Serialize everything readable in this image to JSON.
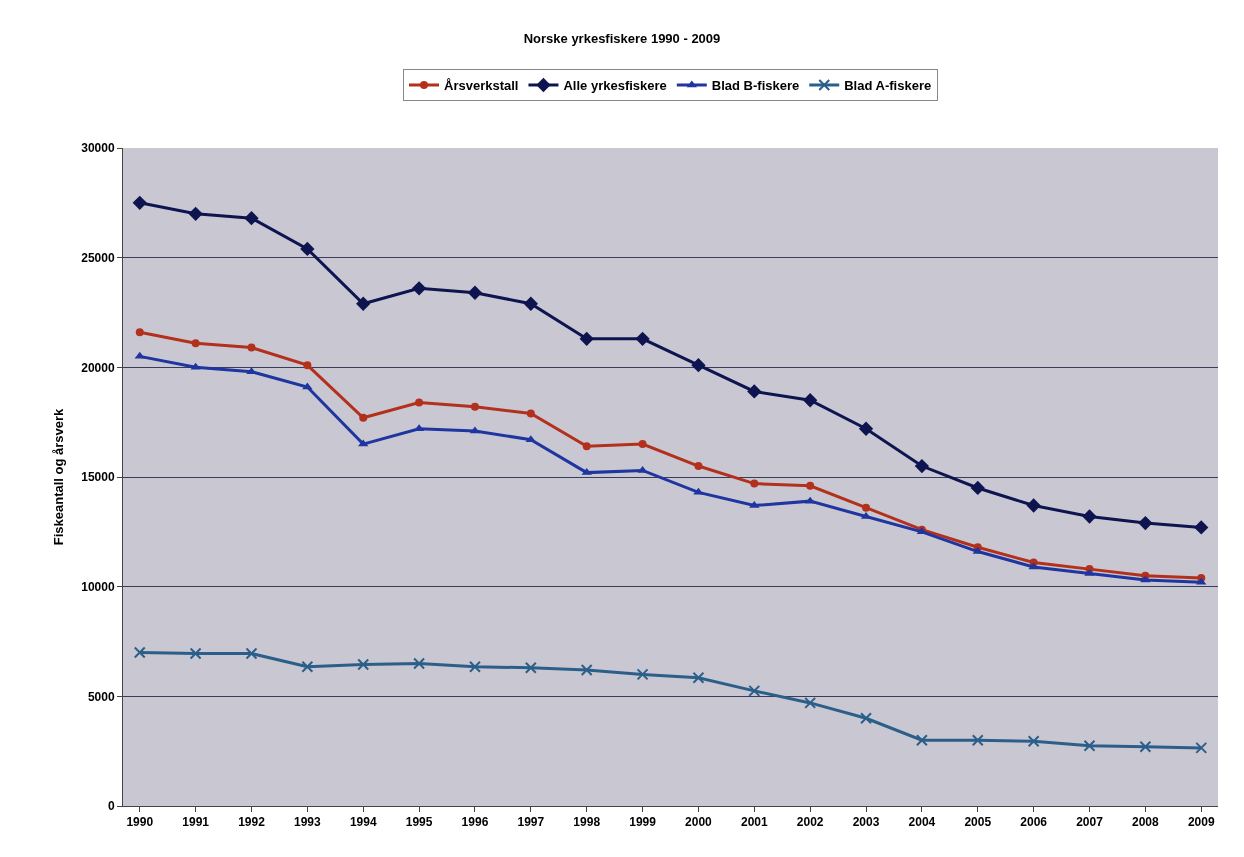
{
  "chart_data": {
    "type": "line",
    "title": "Norske yrkesfiskere 1990 - 2009",
    "ylabel": "Fiskeantall og årsverk",
    "categories": [
      "1990",
      "1991",
      "1992",
      "1993",
      "1994",
      "1995",
      "1996",
      "1997",
      "1998",
      "1999",
      "2000",
      "2001",
      "2002",
      "2003",
      "2004",
      "2005",
      "2006",
      "2007",
      "2008",
      "2009"
    ],
    "series": [
      {
        "name": "Årsverkstall",
        "color": "#b3301c",
        "marker": "circle",
        "values": [
          21600,
          21100,
          20900,
          20100,
          17700,
          18400,
          18200,
          17900,
          16400,
          16500,
          15500,
          14700,
          14600,
          13600,
          12600,
          11800,
          11100,
          10800,
          10500,
          10400
        ]
      },
      {
        "name": "Alle yrkesfiskere",
        "color": "#0e1450",
        "marker": "diamond",
        "values": [
          27500,
          27000,
          26800,
          25400,
          22900,
          23600,
          23400,
          22900,
          21300,
          21300,
          20100,
          18900,
          18500,
          17200,
          15500,
          14500,
          13700,
          13200,
          12900,
          12700
        ]
      },
      {
        "name": "Blad B-fiskere",
        "color": "#1f35a0",
        "marker": "triangle",
        "values": [
          20500,
          20000,
          19800,
          19100,
          16500,
          17200,
          17100,
          16700,
          15200,
          15300,
          14300,
          13700,
          13900,
          13200,
          12500,
          11600,
          10900,
          10600,
          10300,
          10200
        ]
      },
      {
        "name": "Blad A-fiskere",
        "color": "#2b5f8a",
        "marker": "cross",
        "values": [
          7000,
          6950,
          6950,
          6350,
          6450,
          6500,
          6350,
          6300,
          6200,
          6000,
          5850,
          5250,
          4700,
          4000,
          3000,
          3000,
          2950,
          2750,
          2700,
          2650
        ]
      }
    ],
    "ylim": [
      0,
      30000
    ],
    "yticks": [
      0,
      5000,
      10000,
      15000,
      20000,
      25000,
      30000
    ],
    "grid": "y",
    "legend": "top"
  }
}
